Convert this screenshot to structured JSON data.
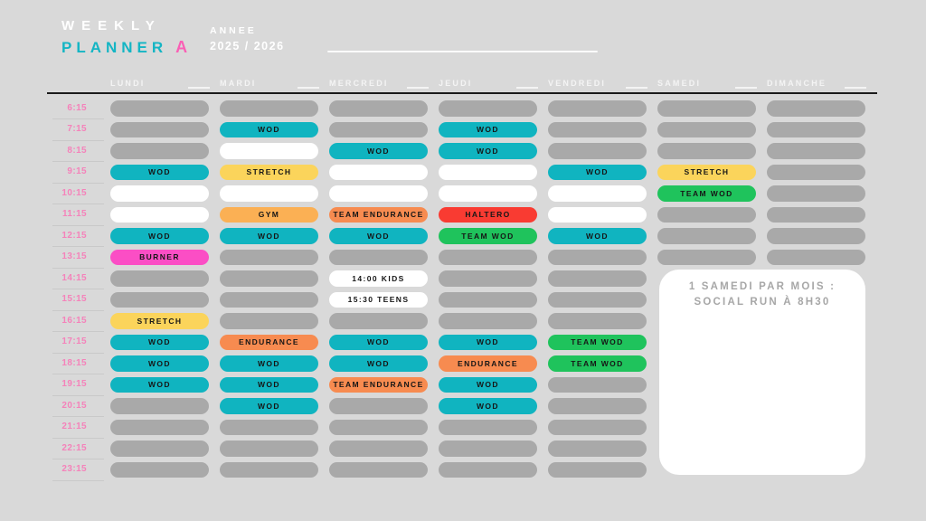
{
  "header": {
    "title_line1": "WEEKLY",
    "title_line2": "PLANNER",
    "variant": "A",
    "year_label": "ANNEE",
    "year_value": "2025 / 2026"
  },
  "days": [
    "LUNDI",
    "MARDI",
    "MERCREDI",
    "JEUDI",
    "VENDREDI",
    "SAMEDI",
    "DIMANCHE"
  ],
  "times": [
    "6:15",
    "7:15",
    "8:15",
    "9:15",
    "10:15",
    "11:15",
    "12:15",
    "13:15",
    "14:15",
    "15:15",
    "16:15",
    "17:15",
    "18:15",
    "19:15",
    "20:15",
    "21:15",
    "22:15",
    "23:15"
  ],
  "note_card": {
    "line1": "1 SAMEDI PAR MOIS :",
    "line2": "SOCIAL RUN À 8H30"
  },
  "colors": {
    "background": "#d9d9d9",
    "gray": "#a9a9a9",
    "white": "#ffffff",
    "cyan": "#10b4c0",
    "yellow": "#fbd45b",
    "orange_light": "#fbb054",
    "orange": "#f78b50",
    "red": "#f93b32",
    "green": "#1fc35c",
    "pink": "#fb4ec5",
    "title_cyan": "#14b5c4",
    "title_pink": "#fa5fb5",
    "time_pink": "#f582ba"
  },
  "schedule": {
    "columns": [
      {
        "day": "LUNDI",
        "cells": [
          {
            "label": "",
            "color": "gray"
          },
          {
            "label": "",
            "color": "gray"
          },
          {
            "label": "",
            "color": "gray"
          },
          {
            "label": "WOD",
            "color": "cyan"
          },
          {
            "label": "",
            "color": "white"
          },
          {
            "label": "",
            "color": "white"
          },
          {
            "label": "WOD",
            "color": "cyan"
          },
          {
            "label": "BURNER",
            "color": "pink"
          },
          {
            "label": "",
            "color": "gray"
          },
          {
            "label": "",
            "color": "gray"
          },
          {
            "label": "STRETCH",
            "color": "yellow"
          },
          {
            "label": "WOD",
            "color": "cyan"
          },
          {
            "label": "WOD",
            "color": "cyan"
          },
          {
            "label": "WOD",
            "color": "cyan"
          },
          {
            "label": "",
            "color": "gray"
          },
          {
            "label": "",
            "color": "gray"
          },
          {
            "label": "",
            "color": "gray"
          },
          {
            "label": "",
            "color": "gray"
          }
        ]
      },
      {
        "day": "MARDI",
        "cells": [
          {
            "label": "",
            "color": "gray"
          },
          {
            "label": "WOD",
            "color": "cyan"
          },
          {
            "label": "",
            "color": "white"
          },
          {
            "label": "STRETCH",
            "color": "yellow"
          },
          {
            "label": "",
            "color": "white"
          },
          {
            "label": "GYM",
            "color": "orange_light"
          },
          {
            "label": "WOD",
            "color": "cyan"
          },
          {
            "label": "",
            "color": "gray"
          },
          {
            "label": "",
            "color": "gray"
          },
          {
            "label": "",
            "color": "gray"
          },
          {
            "label": "",
            "color": "gray"
          },
          {
            "label": "ENDURANCE",
            "color": "orange"
          },
          {
            "label": "WOD",
            "color": "cyan"
          },
          {
            "label": "WOD",
            "color": "cyan"
          },
          {
            "label": "WOD",
            "color": "cyan"
          },
          {
            "label": "",
            "color": "gray"
          },
          {
            "label": "",
            "color": "gray"
          },
          {
            "label": "",
            "color": "gray"
          }
        ]
      },
      {
        "day": "MERCREDI",
        "cells": [
          {
            "label": "",
            "color": "gray"
          },
          {
            "label": "",
            "color": "gray"
          },
          {
            "label": "WOD",
            "color": "cyan"
          },
          {
            "label": "",
            "color": "white"
          },
          {
            "label": "",
            "color": "white"
          },
          {
            "label": "TEAM ENDURANCE",
            "color": "orange"
          },
          {
            "label": "WOD",
            "color": "cyan"
          },
          {
            "label": "",
            "color": "gray"
          },
          {
            "label": "14:00 KIDS",
            "color": "white"
          },
          {
            "label": "15:30 TEENS",
            "color": "white"
          },
          {
            "label": "",
            "color": "gray"
          },
          {
            "label": "WOD",
            "color": "cyan"
          },
          {
            "label": "WOD",
            "color": "cyan"
          },
          {
            "label": "TEAM ENDURANCE",
            "color": "orange"
          },
          {
            "label": "",
            "color": "gray"
          },
          {
            "label": "",
            "color": "gray"
          },
          {
            "label": "",
            "color": "gray"
          },
          {
            "label": "",
            "color": "gray"
          }
        ]
      },
      {
        "day": "JEUDI",
        "cells": [
          {
            "label": "",
            "color": "gray"
          },
          {
            "label": "WOD",
            "color": "cyan"
          },
          {
            "label": "WOD",
            "color": "cyan"
          },
          {
            "label": "",
            "color": "white"
          },
          {
            "label": "",
            "color": "white"
          },
          {
            "label": "HALTERO",
            "color": "red"
          },
          {
            "label": "TEAM WOD",
            "color": "green"
          },
          {
            "label": "",
            "color": "gray"
          },
          {
            "label": "",
            "color": "gray"
          },
          {
            "label": "",
            "color": "gray"
          },
          {
            "label": "",
            "color": "gray"
          },
          {
            "label": "WOD",
            "color": "cyan"
          },
          {
            "label": "ENDURANCE",
            "color": "orange"
          },
          {
            "label": "WOD",
            "color": "cyan"
          },
          {
            "label": "WOD",
            "color": "cyan"
          },
          {
            "label": "",
            "color": "gray"
          },
          {
            "label": "",
            "color": "gray"
          },
          {
            "label": "",
            "color": "gray"
          }
        ]
      },
      {
        "day": "VENDREDI",
        "cells": [
          {
            "label": "",
            "color": "gray"
          },
          {
            "label": "",
            "color": "gray"
          },
          {
            "label": "",
            "color": "gray"
          },
          {
            "label": "WOD",
            "color": "cyan"
          },
          {
            "label": "",
            "color": "white"
          },
          {
            "label": "",
            "color": "white"
          },
          {
            "label": "WOD",
            "color": "cyan"
          },
          {
            "label": "",
            "color": "gray"
          },
          {
            "label": "",
            "color": "gray"
          },
          {
            "label": "",
            "color": "gray"
          },
          {
            "label": "",
            "color": "gray"
          },
          {
            "label": "TEAM WOD",
            "color": "green"
          },
          {
            "label": "TEAM WOD",
            "color": "green"
          },
          {
            "label": "",
            "color": "gray"
          },
          {
            "label": "",
            "color": "gray"
          },
          {
            "label": "",
            "color": "gray"
          },
          {
            "label": "",
            "color": "gray"
          },
          {
            "label": "",
            "color": "gray"
          }
        ]
      },
      {
        "day": "SAMEDI",
        "cells": [
          {
            "label": "",
            "color": "gray"
          },
          {
            "label": "",
            "color": "gray"
          },
          {
            "label": "",
            "color": "gray"
          },
          {
            "label": "STRETCH",
            "color": "yellow"
          },
          {
            "label": "TEAM WOD",
            "color": "green"
          },
          {
            "label": "",
            "color": "gray"
          },
          {
            "label": "",
            "color": "gray"
          },
          {
            "label": "",
            "color": "gray"
          },
          null,
          null,
          null,
          null,
          null,
          null,
          null,
          null,
          null,
          null
        ]
      },
      {
        "day": "DIMANCHE",
        "cells": [
          {
            "label": "",
            "color": "gray"
          },
          {
            "label": "",
            "color": "gray"
          },
          {
            "label": "",
            "color": "gray"
          },
          {
            "label": "",
            "color": "gray"
          },
          {
            "label": "",
            "color": "gray"
          },
          {
            "label": "",
            "color": "gray"
          },
          {
            "label": "",
            "color": "gray"
          },
          {
            "label": "",
            "color": "gray"
          },
          null,
          null,
          null,
          null,
          null,
          null,
          null,
          null,
          null,
          null
        ]
      }
    ]
  }
}
